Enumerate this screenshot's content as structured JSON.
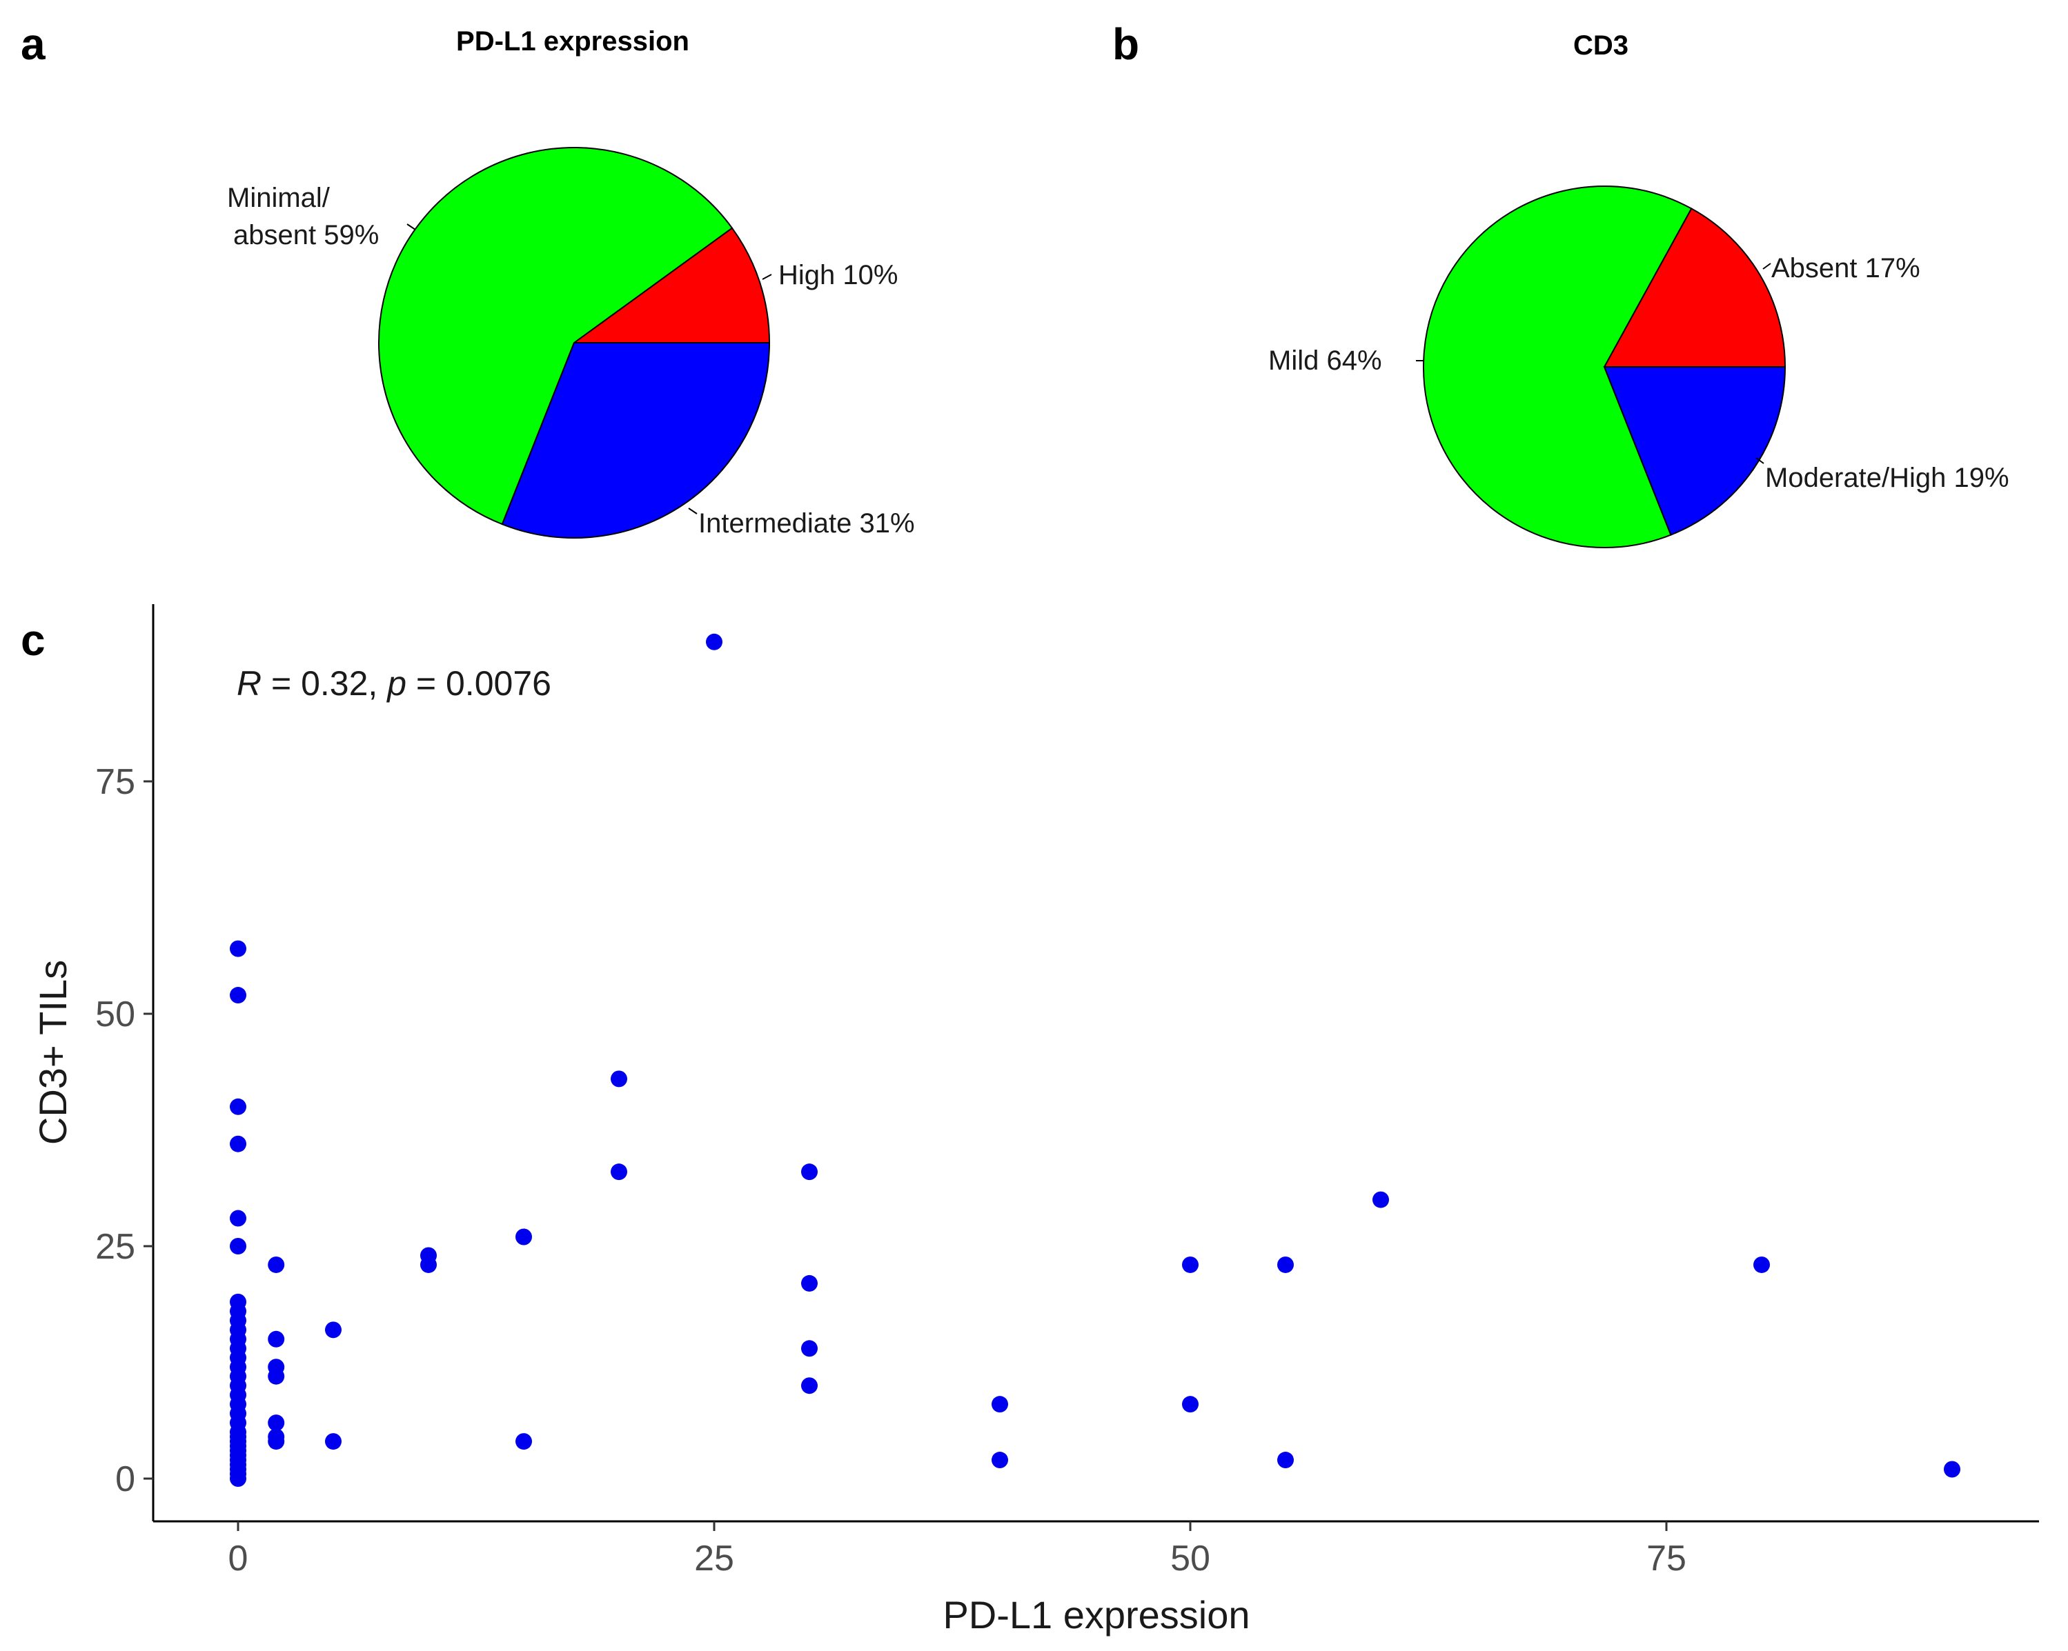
{
  "panels": {
    "a": "a",
    "b": "b",
    "c": "c"
  },
  "colors": {
    "red": "#ff0000",
    "green": "#00ff00",
    "blue": "#0000ff",
    "point": "#0000ee",
    "axis": "#000000"
  },
  "chart_data": [
    {
      "type": "pie",
      "panel": "a",
      "title": "PD-L1 expression",
      "slices": [
        {
          "name": "High",
          "label": "High 10%",
          "value": 10,
          "color": "#ff0000"
        },
        {
          "name": "Intermediate",
          "label": "Intermediate 31%",
          "value": 31,
          "color": "#0000ff"
        },
        {
          "name": "Minimal/absent",
          "label_lines": [
            "Minimal/",
            "absent 59%"
          ],
          "value": 59,
          "color": "#00ff00"
        }
      ]
    },
    {
      "type": "pie",
      "panel": "b",
      "title": "CD3",
      "slices": [
        {
          "name": "Absent",
          "label": "Absent 17%",
          "value": 17,
          "color": "#ff0000"
        },
        {
          "name": "Moderate/High",
          "label": "Moderate/High 19%",
          "value": 19,
          "color": "#0000ff"
        },
        {
          "name": "Mild",
          "label": "Mild 64%",
          "value": 64,
          "color": "#00ff00"
        }
      ]
    },
    {
      "type": "scatter",
      "panel": "c",
      "xlabel": "PD-L1 expression",
      "ylabel": "CD3+ TILs",
      "annotation": {
        "R_label": "R",
        "R_value": " = 0.32, ",
        "p_label": "p",
        "p_value": " = 0.0076"
      },
      "xlim": [
        -4.5,
        94.5
      ],
      "ylim": [
        -4.5,
        94.5
      ],
      "xticks": [
        0,
        25,
        50,
        75
      ],
      "yticks": [
        0,
        25,
        50,
        75
      ],
      "x": [
        0,
        0,
        0,
        0,
        0,
        0,
        0,
        0,
        0,
        0,
        0,
        0,
        0,
        0,
        0,
        0,
        0,
        0,
        0,
        0,
        0,
        0,
        0,
        0,
        0,
        0,
        0,
        0,
        0,
        0,
        0,
        2,
        2,
        2,
        2,
        2,
        2,
        2,
        5,
        5,
        10,
        10,
        15,
        15,
        20,
        20,
        25,
        30,
        30,
        30,
        30,
        40,
        40,
        50,
        50,
        55,
        55,
        60,
        80,
        90
      ],
      "y": [
        57,
        52,
        40,
        36,
        28,
        25,
        19,
        18,
        16,
        15,
        11,
        10,
        9,
        7,
        5,
        4,
        3,
        2,
        1,
        0,
        0.5,
        1.5,
        2.5,
        3.5,
        4.5,
        6,
        8,
        12,
        13,
        14,
        17,
        23,
        15,
        12,
        11,
        6,
        4,
        4.5,
        16,
        4,
        24,
        23,
        26,
        4,
        43,
        33,
        90,
        33,
        21,
        14,
        10,
        8,
        2,
        23,
        8,
        23,
        2,
        30,
        23,
        1
      ]
    }
  ]
}
